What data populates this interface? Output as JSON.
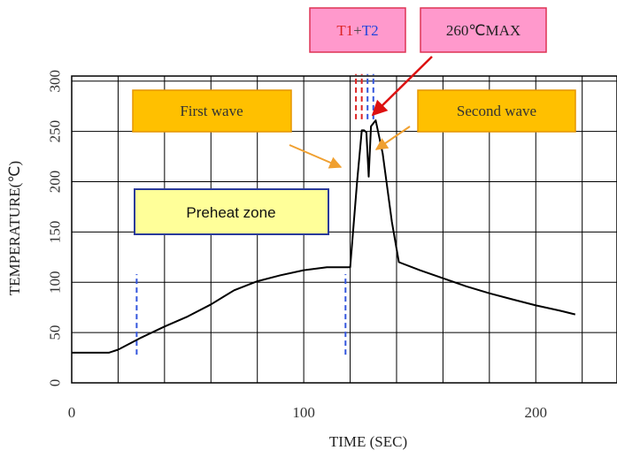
{
  "chart_data": {
    "type": "line",
    "xlabel": "TIME (SEC)",
    "ylabel": "TEMPERATURE(℃)",
    "xlim": [
      0,
      235
    ],
    "ylim": [
      0,
      305
    ],
    "x_major_ticks": [
      0,
      100,
      200
    ],
    "x_grid_step": 20,
    "y_ticks": [
      0,
      50,
      100,
      150,
      200,
      250,
      300
    ],
    "y_tick_labels": [
      "0",
      "50",
      "100",
      "150",
      "200",
      "250",
      "300"
    ],
    "y_grid_step": 50,
    "grid": true,
    "series": [
      {
        "name": "",
        "color": "#000000",
        "x": [
          0,
          16,
          20,
          30,
          40,
          50,
          60,
          70,
          80,
          90,
          100,
          110,
          118,
          120,
          123,
          125,
          126,
          127,
          128,
          129,
          131,
          134,
          138,
          141,
          150,
          160,
          170,
          180,
          190,
          200,
          210,
          217
        ],
        "y": [
          30,
          30,
          33,
          45,
          56,
          66,
          78,
          92,
          101,
          107,
          112,
          115,
          115,
          115,
          200,
          251,
          251,
          249,
          205,
          255,
          261,
          228,
          160,
          120,
          112,
          104,
          96,
          89,
          83,
          77,
          72,
          68
        ]
      }
    ],
    "markers": [
      {
        "name": "preheat-start",
        "x": 28,
        "y_range": [
          28,
          108
        ],
        "color": "#3355dd"
      },
      {
        "name": "preheat-end",
        "x": 118,
        "y_range": [
          28,
          108
        ],
        "color": "#3355dd"
      },
      {
        "name": "t1-line-a",
        "x": 122.5,
        "y_range": [
          262,
          307
        ],
        "color": "#dd2222"
      },
      {
        "name": "t1-line-b",
        "x": 125,
        "y_range": [
          262,
          307
        ],
        "color": "#dd2222"
      },
      {
        "name": "t2-line-a",
        "x": 127.5,
        "y_range": [
          262,
          307
        ],
        "color": "#3355dd"
      },
      {
        "name": "t2-line-b",
        "x": 130,
        "y_range": [
          262,
          307
        ],
        "color": "#3355dd"
      }
    ],
    "annotations": {
      "first_wave": {
        "text": "First wave",
        "fill": "#ffc000",
        "border": "#e69500",
        "arrow_color": "#f0a030",
        "text_color": "#333333"
      },
      "second_wave": {
        "text": "Second wave",
        "fill": "#ffc000",
        "border": "#e69500",
        "arrow_color": "#f0a030",
        "text_color": "#333333"
      },
      "preheat_zone": {
        "text": "Preheat zone",
        "fill": "#ffff99",
        "border": "#2a3a9a",
        "text_color": "#111111"
      },
      "t1": {
        "text": "T1",
        "color": "#dd2222"
      },
      "plus": {
        "text": "+",
        "color": "#444444"
      },
      "t2": {
        "text": "T2",
        "color": "#2244dd"
      },
      "t_box": {
        "fill": "#ff99cc",
        "border": "#dd3355"
      },
      "max": {
        "text": "260℃MAX",
        "fill": "#ff99cc",
        "border": "#dd3355",
        "arrow_color": "#dd1111",
        "text_color": "#222222"
      }
    }
  }
}
